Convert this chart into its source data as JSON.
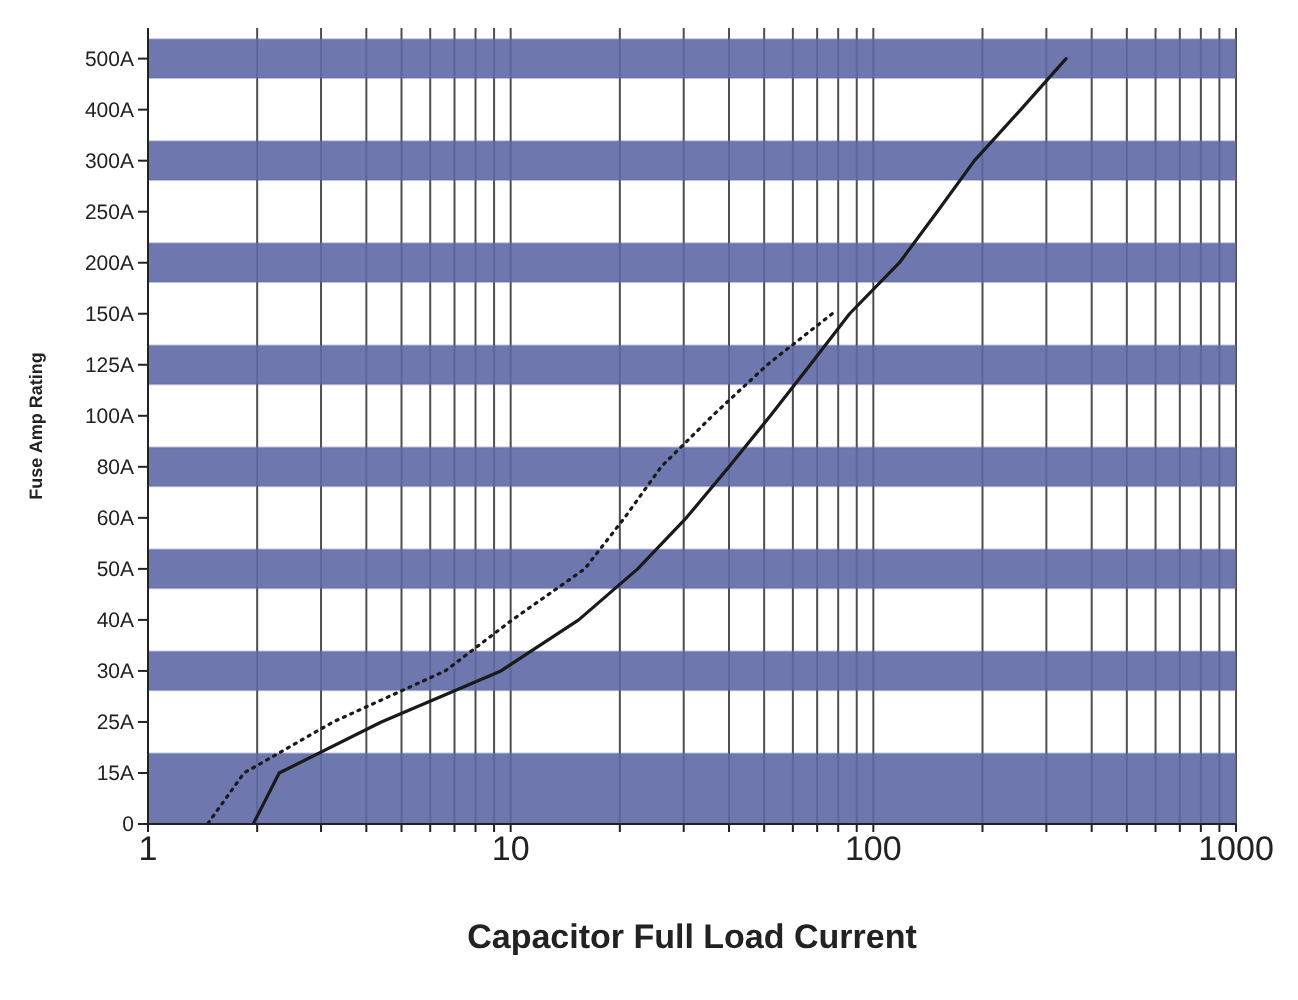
{
  "chart_data": {
    "type": "line",
    "orientation": "horizontal",
    "xlabel": "Capacitor Full Load Current",
    "ylabel": "Fuse Amp Rating",
    "log": "x",
    "grid": "x",
    "marker": "none",
    "categories": [
      "500A",
      "400A",
      "300A",
      "250A",
      "200A",
      "150A",
      "125A",
      "100A",
      "80A",
      "60A",
      "50A",
      "40A",
      "30A",
      "25A",
      "15A",
      "0"
    ],
    "xlim": [
      1,
      1000
    ],
    "xticks": [
      1,
      {
        "value": 2,
        "label": null
      },
      {
        "value": 3,
        "label": null
      },
      {
        "value": 4,
        "label": null
      },
      {
        "value": 5,
        "label": null
      },
      {
        "value": 6,
        "label": null
      },
      {
        "value": 7,
        "label": null
      },
      {
        "value": 8,
        "label": null
      },
      {
        "value": 9,
        "label": null
      },
      10,
      {
        "value": 20,
        "label": null
      },
      {
        "value": 30,
        "label": null
      },
      {
        "value": 40,
        "label": null
      },
      {
        "value": 50,
        "label": null
      },
      {
        "value": 60,
        "label": null
      },
      {
        "value": 70,
        "label": null
      },
      {
        "value": 80,
        "label": null
      },
      {
        "value": 90,
        "label": null
      },
      100,
      {
        "value": 200,
        "label": null
      },
      {
        "value": 300,
        "label": null
      },
      {
        "value": 400,
        "label": null
      },
      {
        "value": 500,
        "label": null
      },
      {
        "value": 600,
        "label": null
      },
      {
        "value": 700,
        "label": null
      },
      {
        "value": 800,
        "label": null
      },
      {
        "value": 900,
        "label": null
      },
      1000
    ],
    "bands": [
      {
        "axis": "y",
        "from": "500A",
        "to": "500A",
        "color": "#5f69a5"
      },
      {
        "axis": "y",
        "from": "300A",
        "to": "300A",
        "color": "#5f69a5"
      },
      {
        "axis": "y",
        "from": "200A",
        "to": "200A",
        "color": "#5f69a5"
      },
      {
        "axis": "y",
        "from": "125A",
        "to": "125A",
        "color": "#5f69a5"
      },
      {
        "axis": "y",
        "from": "80A",
        "to": "80A",
        "color": "#5f69a5"
      },
      {
        "axis": "y",
        "from": "50A",
        "to": "50A",
        "color": "#5f69a5"
      },
      {
        "axis": "y",
        "from": "30A",
        "to": "30A",
        "color": "#5f69a5"
      },
      {
        "axis": "y",
        "from": "15A",
        "to": "0",
        "color": "#5f69a5"
      }
    ],
    "series": [
      {
        "color": "#1a1a1a",
        "line_style": "solid",
        "values": [
          340,
          255,
          190,
          150,
          118,
          86,
          67,
          52,
          40,
          30.5,
          22.4,
          15.4,
          9.4,
          4.4,
          2.3,
          1.95
        ]
      },
      {
        "color": "#1a1a1a",
        "line_style": "dotted",
        "values": [
          null,
          null,
          null,
          null,
          null,
          77,
          51,
          36,
          26,
          20.6,
          16,
          10.1,
          6.6,
          3.24,
          1.84,
          1.46
        ]
      }
    ]
  }
}
